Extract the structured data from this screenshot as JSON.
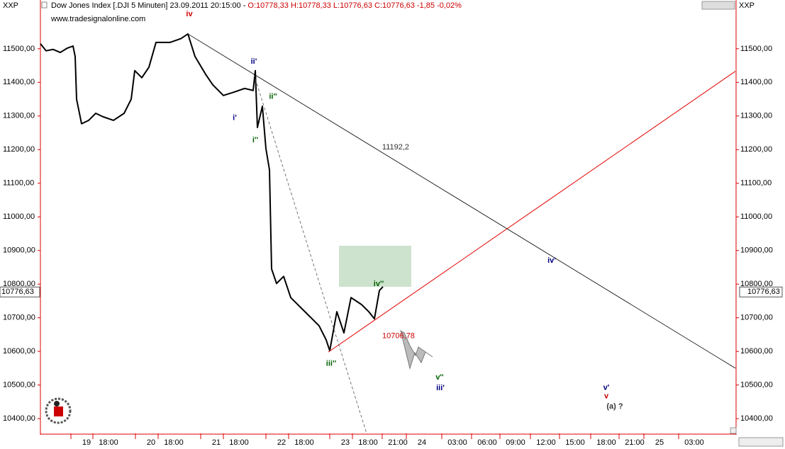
{
  "chart_data": {
    "type": "line",
    "instrument": "XXP",
    "title": "Dow Jones Index [.DJI  5 Minuten] 23.09.2011 20:15:00 -",
    "ohlc_text": "O:10778,33 H:10778,33 L:10776,63 C:10776,63 -1,85 -0,02%",
    "watermark": "www.tradesignalonline.com",
    "xlim": [
      0,
      980
    ],
    "ylim": [
      10356,
      11645
    ],
    "yticks": [
      {
        "value": 10400,
        "label": "10400,00"
      },
      {
        "value": 10500,
        "label": "10500,00"
      },
      {
        "value": 10600,
        "label": "10600,00"
      },
      {
        "value": 10700,
        "label": "10700,00"
      },
      {
        "value": 10800,
        "label": "10800,00"
      },
      {
        "value": 10900,
        "label": "10900,00"
      },
      {
        "value": 11000,
        "label": "11000,00"
      },
      {
        "value": 11100,
        "label": "11100,00"
      },
      {
        "value": 11200,
        "label": "11200,00"
      },
      {
        "value": 11300,
        "label": "11300,00"
      },
      {
        "value": 11400,
        "label": "11400,00"
      },
      {
        "value": 11500,
        "label": "11500,00"
      }
    ],
    "xticks": [
      {
        "value": 65,
        "label": "19"
      },
      {
        "value": 96,
        "label": "18:00"
      },
      {
        "value": 156,
        "label": "20"
      },
      {
        "value": 188,
        "label": "18:00"
      },
      {
        "value": 248,
        "label": "21"
      },
      {
        "value": 280,
        "label": "18:00"
      },
      {
        "value": 340,
        "label": "22"
      },
      {
        "value": 372,
        "label": "18:00"
      },
      {
        "value": 430,
        "label": "23"
      },
      {
        "value": 462,
        "label": "18:00"
      },
      {
        "value": 504,
        "label": "21:00"
      },
      {
        "value": 538,
        "label": "24"
      },
      {
        "value": 588,
        "label": "03:00"
      },
      {
        "value": 630,
        "label": "06:00"
      },
      {
        "value": 670,
        "label": "09:00"
      },
      {
        "value": 713,
        "label": "12:00"
      },
      {
        "value": 754,
        "label": "15:00"
      },
      {
        "value": 798,
        "label": "18:00"
      },
      {
        "value": 838,
        "label": "21:00"
      },
      {
        "value": 873,
        "label": "25"
      },
      {
        "value": 922,
        "label": "03:00"
      }
    ],
    "last": {
      "value": 10776.63,
      "label": "10776,63"
    },
    "series": [
      {
        "color": "#000000",
        "width": 2,
        "x": [
          0,
          8,
          18,
          28,
          38,
          46,
          49,
          51,
          58,
          68,
          78,
          88,
          103,
          118,
          128,
          133,
          143,
          153,
          163,
          183,
          198,
          208,
          218,
          233,
          243,
          258,
          273,
          288,
          300,
          303,
          306,
          313,
          318,
          323,
          326,
          333,
          343,
          353,
          363,
          373,
          383,
          393,
          403,
          408,
          418,
          428,
          438,
          453,
          463,
          471,
          478,
          483
        ],
        "values": [
          11515,
          11494,
          11498,
          11489,
          11502,
          11508,
          11477,
          11350,
          11277,
          11287,
          11308,
          11298,
          11287,
          11308,
          11350,
          11435,
          11414,
          11445,
          11519,
          11519,
          11530,
          11544,
          11477,
          11424,
          11393,
          11361,
          11371,
          11382,
          11376,
          11435,
          11266,
          11329,
          11203,
          11140,
          10845,
          10802,
          10823,
          10760,
          10739,
          10718,
          10697,
          10676,
          10634,
          10602,
          10718,
          10655,
          10760,
          10739,
          10718,
          10697,
          10781,
          10792
        ]
      },
      {
        "color": "#000000",
        "width": 0.8,
        "x": [
          208,
          980
        ],
        "values": [
          11544,
          10550
        ]
      },
      {
        "color": "#e00000",
        "width": 1,
        "x": [
          406,
          980
        ],
        "values": [
          10598,
          11433
        ]
      },
      {
        "color": "#555555",
        "width": 0.8,
        "dash": true,
        "x": [
          301,
          460
        ],
        "values": [
          11424,
          10356
        ]
      }
    ],
    "zones": [
      {
        "color": "#cde3cd",
        "x": [
          421,
          523
        ],
        "y": [
          10792,
          10914
        ]
      }
    ],
    "annotations": [
      {
        "text": "iv",
        "x": 210,
        "y": 11603,
        "color": "#cc0000"
      },
      {
        "text": "ii'",
        "x": 301,
        "y": 11462,
        "color": "#000080"
      },
      {
        "text": "ii''",
        "x": 328,
        "y": 11357,
        "color": "#006000"
      },
      {
        "text": "i'",
        "x": 274,
        "y": 11294,
        "color": "#000080"
      },
      {
        "text": "i''",
        "x": 303,
        "y": 11228,
        "color": "#006000"
      },
      {
        "text": "11192,2",
        "x": 501,
        "y": 11207,
        "color": "#333333"
      },
      {
        "text": "iv'",
        "x": 721,
        "y": 10870,
        "color": "#000080"
      },
      {
        "text": "iv''",
        "x": 477,
        "y": 10800,
        "color": "#006000"
      },
      {
        "text": "10706,78",
        "x": 505,
        "y": 10645,
        "color": "#cc0000"
      },
      {
        "text": "iii''",
        "x": 410,
        "y": 10563,
        "color": "#006000"
      },
      {
        "text": "v''",
        "x": 563,
        "y": 10522,
        "color": "#006000"
      },
      {
        "text": "iii'",
        "x": 564,
        "y": 10491,
        "color": "#000080"
      },
      {
        "text": "v'",
        "x": 798,
        "y": 10492,
        "color": "#000080"
      },
      {
        "text": "v",
        "x": 798,
        "y": 10466,
        "color": "#cc0000"
      },
      {
        "text": "(a) ?",
        "x": 810,
        "y": 10436,
        "color": "#333333"
      }
    ]
  }
}
